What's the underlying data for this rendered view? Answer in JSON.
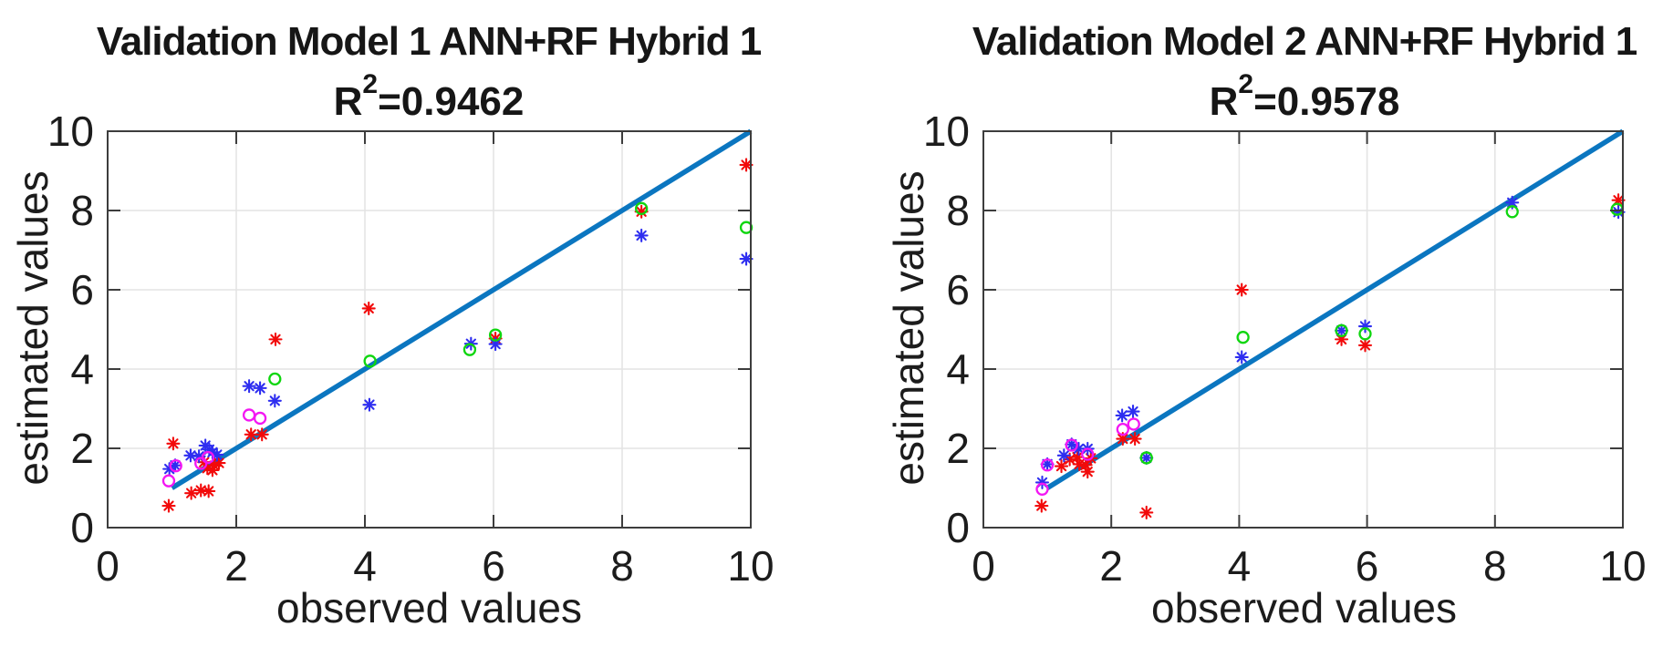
{
  "figure": {
    "background": "#ffffff",
    "axis_color": "#3d3d3d",
    "grid_color": "#e4e4e4",
    "text_color": "#1c1c1c"
  },
  "chart_data": [
    {
      "type": "scatter",
      "title": "Validation Model 1 ANN+RF Hybrid 1",
      "r2": {
        "prefix": "R",
        "sup": "2",
        "rest": "=0.9462"
      },
      "xlabel": "observed values",
      "ylabel": "estimated values",
      "xlim": [
        0,
        10
      ],
      "ylim": [
        0,
        10
      ],
      "xticks": [
        0,
        2,
        4,
        6,
        8,
        10
      ],
      "yticks": [
        0,
        2,
        4,
        6,
        8,
        10
      ],
      "grid": true,
      "identity_line": {
        "x": [
          1,
          10
        ],
        "y": [
          1,
          10
        ],
        "color": "#0b76c0",
        "width": 5.5
      },
      "series": [
        {
          "name": "red asterisk",
          "marker": "asterisk",
          "color": "#f20a0a",
          "points": [
            [
              0.95,
              0.55
            ],
            [
              1.02,
              2.12
            ],
            [
              1.3,
              0.87
            ],
            [
              1.45,
              0.94
            ],
            [
              1.57,
              0.92
            ],
            [
              1.5,
              1.65
            ],
            [
              1.55,
              1.5
            ],
            [
              1.63,
              1.45
            ],
            [
              1.66,
              1.56
            ],
            [
              1.73,
              1.63
            ],
            [
              2.23,
              2.35
            ],
            [
              2.4,
              2.35
            ],
            [
              2.61,
              4.75
            ],
            [
              4.06,
              5.53
            ],
            [
              6.03,
              4.77
            ],
            [
              8.3,
              7.97
            ],
            [
              9.93,
              9.15
            ]
          ]
        },
        {
          "name": "blue asterisk",
          "marker": "asterisk",
          "color": "#2e2ef0",
          "points": [
            [
              0.96,
              1.48
            ],
            [
              1.05,
              1.57
            ],
            [
              1.29,
              1.82
            ],
            [
              1.42,
              1.8
            ],
            [
              1.52,
              2.07
            ],
            [
              1.58,
              1.97
            ],
            [
              1.63,
              1.9
            ],
            [
              1.7,
              1.84
            ],
            [
              2.2,
              3.57
            ],
            [
              2.37,
              3.52
            ],
            [
              2.6,
              3.2
            ],
            [
              4.07,
              3.1
            ],
            [
              5.65,
              4.64
            ],
            [
              6.03,
              4.63
            ],
            [
              8.3,
              7.37
            ],
            [
              9.93,
              6.78
            ]
          ]
        },
        {
          "name": "green circle",
          "marker": "circle",
          "color": "#0fd60f",
          "points": [
            [
              2.6,
              3.75
            ],
            [
              4.08,
              4.2
            ],
            [
              5.63,
              4.49
            ],
            [
              6.03,
              4.86
            ],
            [
              8.3,
              8.05
            ],
            [
              9.93,
              7.57
            ]
          ]
        },
        {
          "name": "magenta circle",
          "marker": "circle",
          "color": "#f316f3",
          "points": [
            [
              0.95,
              1.18
            ],
            [
              1.06,
              1.56
            ],
            [
              1.45,
              1.62
            ],
            [
              1.56,
              1.77
            ],
            [
              2.2,
              2.84
            ],
            [
              2.37,
              2.76
            ]
          ]
        }
      ]
    },
    {
      "type": "scatter",
      "title": "Validation Model 2 ANN+RF Hybrid 1",
      "r2": {
        "prefix": "R",
        "sup": "2",
        "rest": "=0.9578"
      },
      "xlabel": "observed values",
      "ylabel": "estimated values",
      "xlim": [
        0,
        10
      ],
      "ylim": [
        0,
        10
      ],
      "xticks": [
        0,
        2,
        4,
        6,
        8,
        10
      ],
      "yticks": [
        0,
        2,
        4,
        6,
        8,
        10
      ],
      "grid": true,
      "identity_line": {
        "x": [
          1,
          10
        ],
        "y": [
          1,
          10
        ],
        "color": "#0b76c0",
        "width": 5.5
      },
      "series": [
        {
          "name": "red asterisk",
          "marker": "asterisk",
          "color": "#f20a0a",
          "points": [
            [
              0.91,
              0.55
            ],
            [
              1.22,
              1.55
            ],
            [
              1.35,
              1.72
            ],
            [
              1.47,
              1.78
            ],
            [
              1.5,
              1.6
            ],
            [
              1.6,
              1.58
            ],
            [
              1.68,
              1.75
            ],
            [
              1.63,
              1.41
            ],
            [
              2.18,
              2.24
            ],
            [
              2.37,
              2.24
            ],
            [
              2.55,
              0.38
            ],
            [
              4.04,
              6.0
            ],
            [
              5.6,
              4.75
            ],
            [
              5.97,
              4.6
            ],
            [
              9.93,
              8.26
            ]
          ]
        },
        {
          "name": "blue asterisk",
          "marker": "asterisk",
          "color": "#2e2ef0",
          "points": [
            [
              0.92,
              1.14
            ],
            [
              1.0,
              1.6
            ],
            [
              1.26,
              1.82
            ],
            [
              1.38,
              2.1
            ],
            [
              1.49,
              1.99
            ],
            [
              1.63,
              1.99
            ],
            [
              2.17,
              2.83
            ],
            [
              2.34,
              2.93
            ],
            [
              2.55,
              1.76
            ],
            [
              4.04,
              4.3
            ],
            [
              5.6,
              4.97
            ],
            [
              5.97,
              5.08
            ],
            [
              8.27,
              8.2
            ],
            [
              9.93,
              7.96
            ]
          ]
        },
        {
          "name": "green circle",
          "marker": "circle",
          "color": "#0fd60f",
          "points": [
            [
              2.55,
              1.76
            ],
            [
              4.06,
              4.8
            ],
            [
              5.6,
              4.97
            ],
            [
              5.97,
              4.89
            ],
            [
              8.27,
              7.97
            ],
            [
              9.91,
              8.03
            ]
          ]
        },
        {
          "name": "magenta circle",
          "marker": "circle",
          "color": "#f316f3",
          "points": [
            [
              0.92,
              0.97
            ],
            [
              1.0,
              1.58
            ],
            [
              1.38,
              2.08
            ],
            [
              1.63,
              1.85
            ],
            [
              2.18,
              2.48
            ],
            [
              2.35,
              2.61
            ]
          ]
        }
      ]
    }
  ]
}
